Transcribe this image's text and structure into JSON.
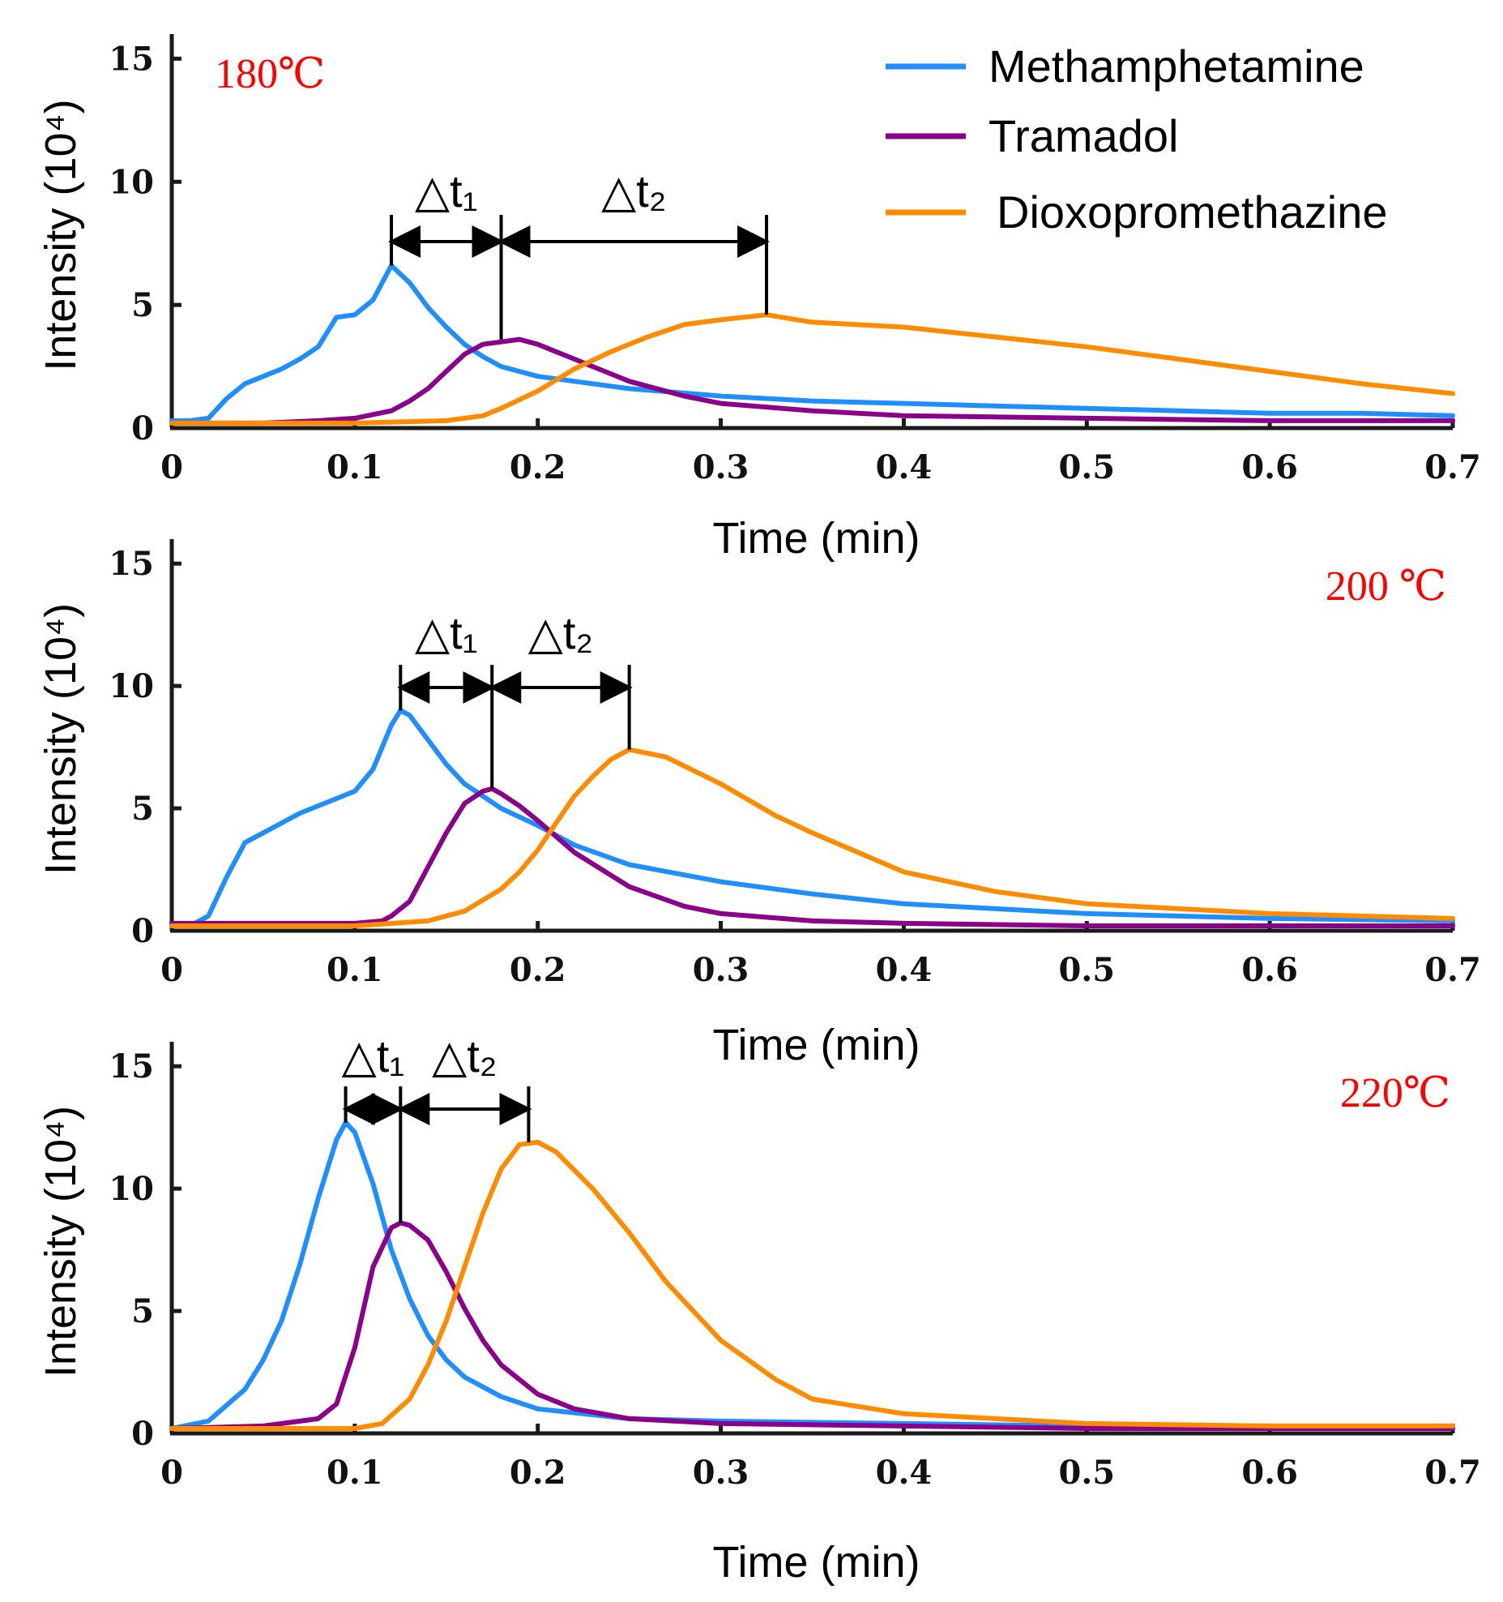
{
  "colors": {
    "methamphetamine": "#1f8fff",
    "tramadol": "#8b008b",
    "dioxopromethazine": "#ff8c00",
    "temperature_label": "#ff0000",
    "axis": "#1a1a1a",
    "marker": "#000000"
  },
  "legend": {
    "items": [
      {
        "key": "methamphetamine",
        "label": "Methamphetamine"
      },
      {
        "key": "tramadol",
        "label": "Tramadol"
      },
      {
        "key": "dioxopromethazine",
        "label": "Dioxopromethazine"
      }
    ]
  },
  "chart_data": [
    {
      "type": "line",
      "temperature_label": "180℃",
      "title": "",
      "xlabel": "Time (min)",
      "ylabel": "Intensity (10⁴)",
      "xlim": [
        0,
        0.7
      ],
      "ylim": [
        0,
        16
      ],
      "xticks": [
        "0",
        "0.1",
        "0.2",
        "0.3",
        "0.4",
        "0.5",
        "0.6",
        "0.7"
      ],
      "yticks": [
        "0",
        "5",
        "10",
        "15"
      ],
      "markers": {
        "t1_label": "△t₁",
        "t2_label": "△t₂",
        "times": [
          0.12,
          0.18,
          0.325
        ]
      },
      "series": [
        {
          "name": "Methamphetamine",
          "key": "methamphetamine",
          "x": [
            0,
            0.01,
            0.02,
            0.03,
            0.04,
            0.05,
            0.06,
            0.07,
            0.08,
            0.09,
            0.1,
            0.11,
            0.12,
            0.13,
            0.14,
            0.15,
            0.16,
            0.17,
            0.18,
            0.2,
            0.22,
            0.25,
            0.3,
            0.35,
            0.4,
            0.45,
            0.5,
            0.55,
            0.6,
            0.65,
            0.7
          ],
          "y": [
            0.3,
            0.3,
            0.4,
            1.2,
            1.8,
            2.1,
            2.4,
            2.8,
            3.3,
            4.5,
            4.6,
            5.2,
            6.6,
            5.9,
            4.9,
            4.1,
            3.4,
            2.9,
            2.5,
            2.1,
            1.9,
            1.6,
            1.3,
            1.1,
            1.0,
            0.9,
            0.8,
            0.7,
            0.6,
            0.6,
            0.5
          ]
        },
        {
          "name": "Tramadol",
          "key": "tramadol",
          "x": [
            0,
            0.05,
            0.08,
            0.1,
            0.12,
            0.13,
            0.14,
            0.15,
            0.16,
            0.17,
            0.18,
            0.19,
            0.2,
            0.21,
            0.22,
            0.23,
            0.25,
            0.28,
            0.3,
            0.35,
            0.4,
            0.5,
            0.6,
            0.7
          ],
          "y": [
            0.2,
            0.2,
            0.3,
            0.4,
            0.7,
            1.1,
            1.6,
            2.3,
            3.0,
            3.4,
            3.5,
            3.6,
            3.4,
            3.1,
            2.8,
            2.5,
            1.9,
            1.3,
            1.0,
            0.7,
            0.5,
            0.4,
            0.3,
            0.3
          ]
        },
        {
          "name": "Dioxopromethazine",
          "key": "dioxopromethazine",
          "x": [
            0,
            0.1,
            0.15,
            0.17,
            0.18,
            0.2,
            0.22,
            0.24,
            0.26,
            0.28,
            0.3,
            0.325,
            0.35,
            0.4,
            0.45,
            0.5,
            0.55,
            0.6,
            0.65,
            0.7
          ],
          "y": [
            0.2,
            0.2,
            0.3,
            0.5,
            0.8,
            1.5,
            2.4,
            3.1,
            3.7,
            4.2,
            4.4,
            4.6,
            4.3,
            4.1,
            3.7,
            3.3,
            2.8,
            2.3,
            1.8,
            1.4
          ]
        }
      ]
    },
    {
      "type": "line",
      "temperature_label": "200 ℃",
      "title": "",
      "xlabel": "Time (min)",
      "ylabel": "Intensity (10⁴)",
      "xlim": [
        0,
        0.7
      ],
      "ylim": [
        0,
        16
      ],
      "xticks": [
        "0",
        "0.1",
        "0.2",
        "0.3",
        "0.4",
        "0.5",
        "0.6",
        "0.7"
      ],
      "yticks": [
        "0",
        "5",
        "10",
        "15"
      ],
      "markers": {
        "t1_label": "△t₁",
        "t2_label": "△t₂",
        "times": [
          0.125,
          0.175,
          0.25
        ]
      },
      "series": [
        {
          "name": "Methamphetamine",
          "key": "methamphetamine",
          "x": [
            0,
            0.01,
            0.02,
            0.03,
            0.04,
            0.05,
            0.06,
            0.07,
            0.08,
            0.09,
            0.1,
            0.11,
            0.12,
            0.125,
            0.13,
            0.14,
            0.15,
            0.16,
            0.17,
            0.18,
            0.2,
            0.22,
            0.25,
            0.3,
            0.35,
            0.4,
            0.5,
            0.6,
            0.7
          ],
          "y": [
            0.2,
            0.2,
            0.6,
            2.2,
            3.6,
            4.0,
            4.4,
            4.8,
            5.1,
            5.4,
            5.7,
            6.6,
            8.4,
            9.0,
            8.8,
            7.8,
            6.8,
            6.0,
            5.5,
            5.0,
            4.3,
            3.5,
            2.7,
            2.0,
            1.5,
            1.1,
            0.7,
            0.5,
            0.4
          ]
        },
        {
          "name": "Tramadol",
          "key": "tramadol",
          "x": [
            0,
            0.05,
            0.1,
            0.115,
            0.12,
            0.13,
            0.14,
            0.15,
            0.16,
            0.17,
            0.175,
            0.18,
            0.19,
            0.2,
            0.22,
            0.25,
            0.28,
            0.3,
            0.35,
            0.4,
            0.5,
            0.6,
            0.7
          ],
          "y": [
            0.3,
            0.3,
            0.3,
            0.4,
            0.6,
            1.2,
            2.6,
            4.0,
            5.2,
            5.7,
            5.8,
            5.6,
            5.1,
            4.5,
            3.2,
            1.8,
            1.0,
            0.7,
            0.4,
            0.3,
            0.2,
            0.2,
            0.2
          ]
        },
        {
          "name": "Dioxopromethazine",
          "key": "dioxopromethazine",
          "x": [
            0,
            0.1,
            0.14,
            0.16,
            0.18,
            0.19,
            0.2,
            0.21,
            0.22,
            0.23,
            0.24,
            0.25,
            0.27,
            0.3,
            0.33,
            0.35,
            0.4,
            0.45,
            0.5,
            0.6,
            0.7
          ],
          "y": [
            0.2,
            0.2,
            0.4,
            0.8,
            1.7,
            2.4,
            3.3,
            4.4,
            5.5,
            6.3,
            7.0,
            7.4,
            7.1,
            6.0,
            4.7,
            4.0,
            2.4,
            1.6,
            1.1,
            0.7,
            0.5
          ]
        }
      ]
    },
    {
      "type": "line",
      "temperature_label": "220℃",
      "title": "",
      "xlabel": "Time (min)",
      "ylabel": "Intensity (10⁴)",
      "xlim": [
        0,
        0.7
      ],
      "ylim": [
        0,
        16
      ],
      "xticks": [
        "0",
        "0.1",
        "0.2",
        "0.3",
        "0.4",
        "0.5",
        "0.6",
        "0.7"
      ],
      "yticks": [
        "0",
        "5",
        "10",
        "15"
      ],
      "markers": {
        "t1_label": "△t₁",
        "t2_label": "△t₂",
        "times": [
          0.095,
          0.125,
          0.195
        ]
      },
      "series": [
        {
          "name": "Methamphetamine",
          "key": "methamphetamine",
          "x": [
            0,
            0.02,
            0.04,
            0.05,
            0.06,
            0.07,
            0.08,
            0.09,
            0.095,
            0.1,
            0.11,
            0.12,
            0.13,
            0.14,
            0.15,
            0.16,
            0.18,
            0.2,
            0.25,
            0.3,
            0.4,
            0.5,
            0.6,
            0.7
          ],
          "y": [
            0.2,
            0.5,
            1.8,
            3.0,
            4.6,
            6.9,
            9.6,
            12.0,
            12.7,
            12.3,
            10.2,
            7.5,
            5.5,
            4.0,
            3.0,
            2.3,
            1.5,
            1.0,
            0.6,
            0.5,
            0.4,
            0.3,
            0.3,
            0.3
          ]
        },
        {
          "name": "Tramadol",
          "key": "tramadol",
          "x": [
            0,
            0.05,
            0.08,
            0.09,
            0.1,
            0.11,
            0.12,
            0.125,
            0.13,
            0.14,
            0.15,
            0.16,
            0.17,
            0.18,
            0.2,
            0.22,
            0.25,
            0.3,
            0.4,
            0.5,
            0.6,
            0.7
          ],
          "y": [
            0.2,
            0.3,
            0.6,
            1.2,
            3.5,
            6.8,
            8.4,
            8.6,
            8.5,
            7.9,
            6.6,
            5.1,
            3.8,
            2.8,
            1.6,
            1.0,
            0.6,
            0.4,
            0.3,
            0.2,
            0.2,
            0.2
          ]
        },
        {
          "name": "Dioxopromethazine",
          "key": "dioxopromethazine",
          "x": [
            0,
            0.1,
            0.115,
            0.13,
            0.14,
            0.15,
            0.16,
            0.17,
            0.18,
            0.19,
            0.2,
            0.21,
            0.23,
            0.25,
            0.27,
            0.3,
            0.33,
            0.35,
            0.4,
            0.5,
            0.6,
            0.7
          ],
          "y": [
            0.2,
            0.2,
            0.4,
            1.4,
            2.8,
            4.6,
            6.8,
            9.0,
            10.8,
            11.8,
            11.9,
            11.5,
            10.0,
            8.2,
            6.2,
            3.8,
            2.2,
            1.4,
            0.8,
            0.4,
            0.3,
            0.3
          ]
        }
      ]
    }
  ]
}
